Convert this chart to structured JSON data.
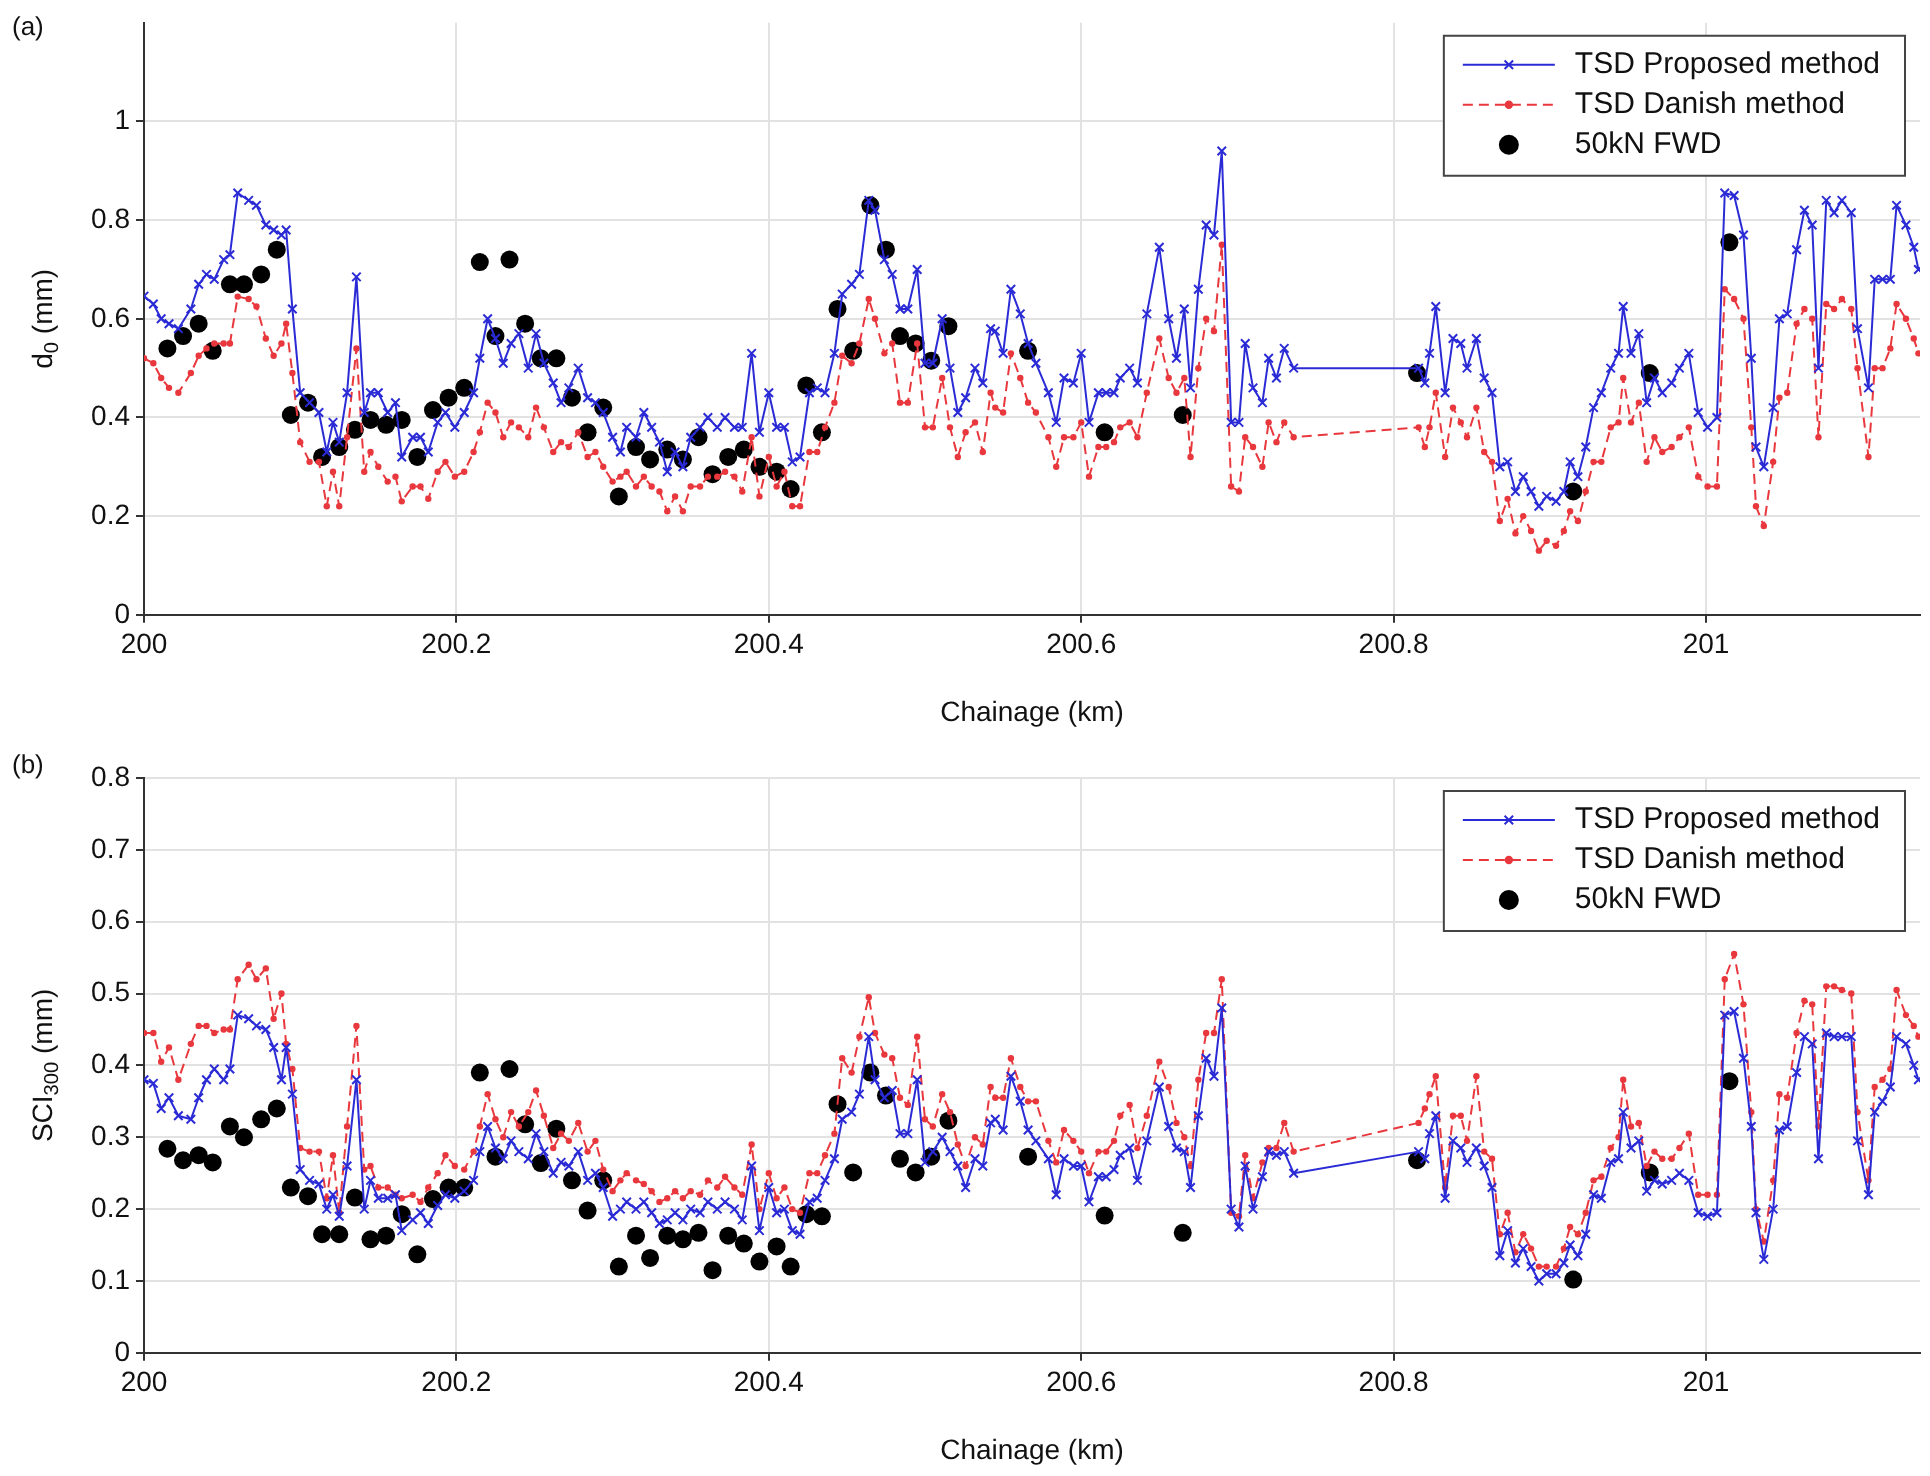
{
  "chart_data": [
    {
      "type": "line",
      "annotations": [
        "(a)"
      ],
      "xlabel": "Chainage (km)",
      "ylabel": "d$_{0}$ (mm)",
      "xlim": [
        200,
        201.137
      ],
      "ylim": [
        0,
        1.2
      ],
      "xticks": [
        200,
        200.2,
        200.4,
        200.6,
        200.8,
        201
      ],
      "yticks": [
        0,
        0.2,
        0.4,
        0.6,
        0.8,
        1
      ],
      "grid": true,
      "legend": "top right",
      "x": [
        200.0,
        200.006,
        200.011,
        200.016,
        200.022,
        200.03,
        200.035,
        200.04,
        200.045,
        200.051,
        200.055,
        200.06,
        200.067,
        200.072,
        200.078,
        200.083,
        200.088,
        200.091,
        200.095,
        200.1,
        200.106,
        200.112,
        200.117,
        200.121,
        200.125,
        200.13,
        200.136,
        200.141,
        200.145,
        200.15,
        200.156,
        200.161,
        200.165,
        200.172,
        200.177,
        200.182,
        200.188,
        200.193,
        200.199,
        200.205,
        200.211,
        200.215,
        200.22,
        200.225,
        200.23,
        200.235,
        200.24,
        200.246,
        200.251,
        200.256,
        200.262,
        200.267,
        200.272,
        200.278,
        200.284,
        200.289,
        200.294,
        200.3,
        200.305,
        200.309,
        200.315,
        200.32,
        200.325,
        200.33,
        200.335,
        200.34,
        200.345,
        200.35,
        200.356,
        200.361,
        200.367,
        200.372,
        200.378,
        200.383,
        200.389,
        200.394,
        200.4,
        200.405,
        200.41,
        200.415,
        200.42,
        200.426,
        200.431,
        200.436,
        200.442,
        200.447,
        200.453,
        200.458,
        200.464,
        200.468,
        200.474,
        200.479,
        200.484,
        200.489,
        200.495,
        200.5,
        200.505,
        200.511,
        200.516,
        200.521,
        200.526,
        200.532,
        200.537,
        200.542,
        200.545,
        200.55,
        200.555,
        200.561,
        200.566,
        200.571,
        200.579,
        200.584,
        200.589,
        200.595,
        200.6,
        200.605,
        200.611,
        200.616,
        200.621,
        200.625,
        200.631,
        200.636,
        200.642,
        200.65,
        200.656,
        200.661,
        200.666,
        200.67,
        200.675,
        200.68,
        200.685,
        200.69,
        200.696,
        200.701,
        200.705,
        200.71,
        200.716,
        200.72,
        200.725,
        200.73,
        200.736,
        200.816,
        200.82,
        200.823,
        200.827,
        200.833,
        200.838,
        200.843,
        200.847,
        200.853,
        200.858,
        200.863,
        200.868,
        200.873,
        200.878,
        200.883,
        200.888,
        200.893,
        200.898,
        200.904,
        200.909,
        200.913,
        200.918,
        200.923,
        200.928,
        200.933,
        200.939,
        200.944,
        200.947,
        200.952,
        200.957,
        200.962,
        200.967,
        200.972,
        200.978,
        200.983,
        200.989,
        200.995,
        201.001,
        201.007,
        201.012,
        201.018,
        201.024,
        201.029,
        201.032,
        201.037,
        201.043,
        201.047,
        201.052,
        201.058,
        201.063,
        201.068,
        201.072,
        201.077,
        201.082,
        201.087,
        201.093,
        201.097,
        201.104,
        201.108,
        201.113,
        201.118,
        201.122,
        201.128,
        201.133,
        201.136
      ],
      "series": [
        {
          "name": "TSD Proposed method",
          "color": "#2b2bd6",
          "marker": "cross",
          "line_style": "solid",
          "values": [
            0.646,
            0.63,
            0.6,
            0.59,
            0.58,
            0.62,
            0.67,
            0.69,
            0.68,
            0.72,
            0.73,
            0.855,
            0.84,
            0.83,
            0.79,
            0.78,
            0.77,
            0.78,
            0.62,
            0.45,
            0.43,
            0.41,
            0.33,
            0.39,
            0.35,
            0.45,
            0.685,
            0.41,
            0.45,
            0.45,
            0.41,
            0.43,
            0.32,
            0.36,
            0.36,
            0.33,
            0.39,
            0.41,
            0.38,
            0.41,
            0.45,
            0.52,
            0.6,
            0.56,
            0.51,
            0.55,
            0.57,
            0.5,
            0.57,
            0.51,
            0.47,
            0.43,
            0.46,
            0.5,
            0.44,
            0.43,
            0.41,
            0.36,
            0.33,
            0.38,
            0.36,
            0.41,
            0.38,
            0.35,
            0.29,
            0.33,
            0.3,
            0.36,
            0.38,
            0.4,
            0.38,
            0.4,
            0.38,
            0.38,
            0.53,
            0.37,
            0.45,
            0.38,
            0.38,
            0.31,
            0.32,
            0.45,
            0.46,
            0.45,
            0.53,
            0.65,
            0.67,
            0.69,
            0.84,
            0.82,
            0.72,
            0.69,
            0.62,
            0.62,
            0.7,
            0.51,
            0.51,
            0.6,
            0.5,
            0.41,
            0.44,
            0.5,
            0.47,
            0.58,
            0.575,
            0.53,
            0.66,
            0.61,
            0.55,
            0.51,
            0.45,
            0.39,
            0.48,
            0.47,
            0.53,
            0.39,
            0.45,
            0.45,
            0.45,
            0.48,
            0.5,
            0.47,
            0.61,
            0.745,
            0.6,
            0.52,
            0.62,
            0.46,
            0.66,
            0.79,
            0.77,
            0.94,
            0.39,
            0.39,
            0.55,
            0.46,
            0.43,
            0.52,
            0.48,
            0.54,
            0.5,
            0.5,
            0.47,
            0.53,
            0.625,
            0.45,
            0.56,
            0.55,
            0.5,
            0.56,
            0.48,
            0.45,
            0.3,
            0.31,
            0.25,
            0.28,
            0.25,
            0.22,
            0.24,
            0.23,
            0.25,
            0.31,
            0.28,
            0.34,
            0.42,
            0.45,
            0.5,
            0.53,
            0.625,
            0.53,
            0.57,
            0.43,
            0.48,
            0.45,
            0.47,
            0.5,
            0.53,
            0.41,
            0.38,
            0.4,
            0.855,
            0.85,
            0.77,
            0.52,
            0.34,
            0.3,
            0.42,
            0.6,
            0.61,
            0.74,
            0.82,
            0.79,
            0.5,
            0.84,
            0.815,
            0.84,
            0.815,
            0.58,
            0.46,
            0.68,
            0.68,
            0.68,
            0.83,
            0.79,
            0.745,
            0.7
          ]
        },
        {
          "name": "TSD Danish method",
          "color": "#e8383d",
          "marker": "circle",
          "line_style": "dashed",
          "values": [
            0.52,
            0.51,
            0.48,
            0.46,
            0.45,
            0.49,
            0.525,
            0.54,
            0.55,
            0.55,
            0.55,
            0.645,
            0.64,
            0.625,
            0.56,
            0.525,
            0.55,
            0.59,
            0.49,
            0.35,
            0.31,
            0.31,
            0.22,
            0.29,
            0.22,
            0.36,
            0.54,
            0.29,
            0.33,
            0.3,
            0.27,
            0.28,
            0.23,
            0.26,
            0.26,
            0.235,
            0.29,
            0.31,
            0.28,
            0.29,
            0.33,
            0.37,
            0.43,
            0.41,
            0.36,
            0.39,
            0.38,
            0.36,
            0.42,
            0.38,
            0.33,
            0.35,
            0.34,
            0.37,
            0.32,
            0.33,
            0.3,
            0.27,
            0.28,
            0.29,
            0.26,
            0.28,
            0.26,
            0.25,
            0.21,
            0.24,
            0.21,
            0.26,
            0.26,
            0.28,
            0.28,
            0.29,
            0.28,
            0.25,
            0.36,
            0.24,
            0.32,
            0.26,
            0.29,
            0.22,
            0.22,
            0.33,
            0.33,
            0.38,
            0.43,
            0.525,
            0.51,
            0.55,
            0.64,
            0.6,
            0.53,
            0.55,
            0.43,
            0.43,
            0.55,
            0.38,
            0.38,
            0.48,
            0.38,
            0.32,
            0.37,
            0.39,
            0.33,
            0.45,
            0.42,
            0.41,
            0.53,
            0.48,
            0.43,
            0.41,
            0.36,
            0.3,
            0.36,
            0.36,
            0.39,
            0.28,
            0.34,
            0.34,
            0.35,
            0.38,
            0.39,
            0.36,
            0.45,
            0.56,
            0.48,
            0.45,
            0.48,
            0.32,
            0.5,
            0.6,
            0.575,
            0.75,
            0.26,
            0.25,
            0.36,
            0.34,
            0.3,
            0.39,
            0.35,
            0.39,
            0.36,
            0.38,
            0.34,
            0.38,
            0.45,
            0.32,
            0.42,
            0.39,
            0.36,
            0.42,
            0.33,
            0.31,
            0.19,
            0.235,
            0.165,
            0.2,
            0.17,
            0.13,
            0.15,
            0.14,
            0.17,
            0.21,
            0.19,
            0.25,
            0.31,
            0.31,
            0.38,
            0.39,
            0.48,
            0.39,
            0.43,
            0.31,
            0.36,
            0.33,
            0.34,
            0.36,
            0.38,
            0.28,
            0.26,
            0.26,
            0.66,
            0.64,
            0.6,
            0.38,
            0.22,
            0.18,
            0.31,
            0.44,
            0.45,
            0.59,
            0.62,
            0.6,
            0.36,
            0.63,
            0.62,
            0.64,
            0.62,
            0.5,
            0.32,
            0.5,
            0.5,
            0.54,
            0.63,
            0.6,
            0.56,
            0.53
          ]
        },
        {
          "name": "50kN FWD",
          "type": "scatter",
          "color": "#000000",
          "marker": "circle",
          "x": [
            200.015,
            200.025,
            200.035,
            200.044,
            200.055,
            200.064,
            200.075,
            200.085,
            200.094,
            200.105,
            200.114,
            200.125,
            200.135,
            200.145,
            200.155,
            200.165,
            200.175,
            200.185,
            200.195,
            200.205,
            200.215,
            200.225,
            200.234,
            200.244,
            200.254,
            200.264,
            200.274,
            200.284,
            200.294,
            200.304,
            200.315,
            200.324,
            200.335,
            200.345,
            200.355,
            200.364,
            200.374,
            200.384,
            200.394,
            200.405,
            200.414,
            200.424,
            200.434,
            200.444,
            200.454,
            200.465,
            200.475,
            200.484,
            200.494,
            200.504,
            200.515,
            200.566,
            200.615,
            200.665,
            200.815,
            200.915,
            200.964,
            201.015
          ],
          "values": [
            0.54,
            0.565,
            0.59,
            0.535,
            0.67,
            0.67,
            0.69,
            0.74,
            0.405,
            0.43,
            0.32,
            0.34,
            0.375,
            0.395,
            0.385,
            0.395,
            0.32,
            0.415,
            0.44,
            0.46,
            0.715,
            0.565,
            0.72,
            0.59,
            0.52,
            0.52,
            0.44,
            0.37,
            0.42,
            0.24,
            0.34,
            0.315,
            0.335,
            0.315,
            0.36,
            0.285,
            0.32,
            0.335,
            0.3,
            0.29,
            0.255,
            0.465,
            0.37,
            0.62,
            0.535,
            0.83,
            0.74,
            0.565,
            0.55,
            0.515,
            0.585,
            0.535,
            0.37,
            0.405,
            0.49,
            0.25,
            0.49,
            0.755
          ]
        }
      ]
    },
    {
      "type": "line",
      "annotations": [
        "(b)"
      ],
      "xlabel": "Chainage (km)",
      "ylabel": "SCI$_{300}$ (mm)",
      "xlim": [
        200,
        201.137
      ],
      "ylim": [
        0,
        0.8
      ],
      "xticks": [
        200,
        200.2,
        200.4,
        200.6,
        200.8,
        201
      ],
      "yticks": [
        0,
        0.1,
        0.2,
        0.3,
        0.4,
        0.5,
        0.6,
        0.7,
        0.8
      ],
      "grid": true,
      "legend": "top right",
      "x": [
        200.0,
        200.006,
        200.011,
        200.016,
        200.022,
        200.03,
        200.035,
        200.04,
        200.045,
        200.051,
        200.055,
        200.06,
        200.067,
        200.072,
        200.078,
        200.083,
        200.088,
        200.091,
        200.095,
        200.1,
        200.106,
        200.112,
        200.117,
        200.121,
        200.125,
        200.13,
        200.136,
        200.141,
        200.145,
        200.15,
        200.156,
        200.161,
        200.165,
        200.172,
        200.177,
        200.182,
        200.188,
        200.193,
        200.199,
        200.205,
        200.211,
        200.215,
        200.22,
        200.225,
        200.23,
        200.235,
        200.24,
        200.246,
        200.251,
        200.256,
        200.262,
        200.267,
        200.272,
        200.278,
        200.284,
        200.289,
        200.294,
        200.3,
        200.305,
        200.309,
        200.315,
        200.32,
        200.325,
        200.33,
        200.335,
        200.34,
        200.345,
        200.35,
        200.356,
        200.361,
        200.367,
        200.372,
        200.378,
        200.383,
        200.389,
        200.394,
        200.4,
        200.405,
        200.41,
        200.415,
        200.42,
        200.426,
        200.431,
        200.436,
        200.442,
        200.447,
        200.453,
        200.458,
        200.464,
        200.468,
        200.474,
        200.479,
        200.484,
        200.489,
        200.495,
        200.5,
        200.505,
        200.511,
        200.516,
        200.521,
        200.526,
        200.532,
        200.537,
        200.542,
        200.545,
        200.55,
        200.555,
        200.561,
        200.566,
        200.571,
        200.579,
        200.584,
        200.589,
        200.595,
        200.6,
        200.605,
        200.611,
        200.616,
        200.621,
        200.625,
        200.631,
        200.636,
        200.642,
        200.65,
        200.656,
        200.661,
        200.666,
        200.67,
        200.675,
        200.68,
        200.685,
        200.69,
        200.696,
        200.701,
        200.705,
        200.71,
        200.716,
        200.72,
        200.725,
        200.73,
        200.736,
        200.816,
        200.82,
        200.823,
        200.827,
        200.833,
        200.838,
        200.843,
        200.847,
        200.853,
        200.858,
        200.863,
        200.868,
        200.873,
        200.878,
        200.883,
        200.888,
        200.893,
        200.898,
        200.904,
        200.909,
        200.913,
        200.918,
        200.923,
        200.928,
        200.933,
        200.939,
        200.944,
        200.947,
        200.952,
        200.957,
        200.962,
        200.967,
        200.972,
        200.978,
        200.983,
        200.989,
        200.995,
        201.001,
        201.007,
        201.012,
        201.018,
        201.024,
        201.029,
        201.032,
        201.037,
        201.043,
        201.047,
        201.052,
        201.058,
        201.063,
        201.068,
        201.072,
        201.077,
        201.082,
        201.087,
        201.093,
        201.097,
        201.104,
        201.108,
        201.113,
        201.118,
        201.122,
        201.128,
        201.133,
        201.136
      ],
      "series": [
        {
          "name": "TSD Proposed method",
          "color": "#2b2bd6",
          "marker": "cross",
          "line_style": "solid",
          "values": [
            0.38,
            0.375,
            0.34,
            0.355,
            0.33,
            0.325,
            0.355,
            0.38,
            0.395,
            0.38,
            0.395,
            0.47,
            0.465,
            0.455,
            0.45,
            0.425,
            0.38,
            0.425,
            0.36,
            0.255,
            0.24,
            0.235,
            0.2,
            0.22,
            0.19,
            0.26,
            0.38,
            0.2,
            0.24,
            0.215,
            0.215,
            0.22,
            0.17,
            0.185,
            0.195,
            0.18,
            0.205,
            0.22,
            0.215,
            0.225,
            0.24,
            0.28,
            0.315,
            0.285,
            0.27,
            0.295,
            0.28,
            0.27,
            0.305,
            0.28,
            0.25,
            0.265,
            0.26,
            0.28,
            0.24,
            0.25,
            0.23,
            0.19,
            0.2,
            0.21,
            0.2,
            0.21,
            0.195,
            0.18,
            0.185,
            0.195,
            0.185,
            0.2,
            0.195,
            0.21,
            0.2,
            0.21,
            0.2,
            0.185,
            0.26,
            0.17,
            0.23,
            0.195,
            0.2,
            0.17,
            0.165,
            0.21,
            0.215,
            0.24,
            0.27,
            0.325,
            0.335,
            0.36,
            0.44,
            0.38,
            0.355,
            0.365,
            0.305,
            0.305,
            0.38,
            0.265,
            0.28,
            0.3,
            0.28,
            0.26,
            0.23,
            0.27,
            0.26,
            0.32,
            0.325,
            0.31,
            0.385,
            0.35,
            0.31,
            0.295,
            0.27,
            0.22,
            0.27,
            0.26,
            0.26,
            0.21,
            0.245,
            0.245,
            0.255,
            0.275,
            0.285,
            0.24,
            0.295,
            0.37,
            0.315,
            0.285,
            0.28,
            0.23,
            0.33,
            0.41,
            0.385,
            0.48,
            0.2,
            0.175,
            0.26,
            0.2,
            0.245,
            0.28,
            0.275,
            0.28,
            0.25,
            0.28,
            0.27,
            0.305,
            0.33,
            0.215,
            0.295,
            0.285,
            0.265,
            0.285,
            0.26,
            0.23,
            0.135,
            0.17,
            0.125,
            0.145,
            0.12,
            0.1,
            0.11,
            0.11,
            0.125,
            0.15,
            0.135,
            0.165,
            0.22,
            0.215,
            0.265,
            0.27,
            0.335,
            0.285,
            0.295,
            0.225,
            0.24,
            0.235,
            0.24,
            0.25,
            0.24,
            0.195,
            0.19,
            0.195,
            0.47,
            0.475,
            0.41,
            0.315,
            0.195,
            0.13,
            0.2,
            0.31,
            0.315,
            0.39,
            0.44,
            0.43,
            0.27,
            0.445,
            0.44,
            0.44,
            0.44,
            0.295,
            0.22,
            0.335,
            0.35,
            0.37,
            0.44,
            0.43,
            0.4,
            0.38
          ]
        },
        {
          "name": "TSD Danish method",
          "color": "#e8383d",
          "marker": "circle",
          "line_style": "dashed",
          "values": [
            0.445,
            0.445,
            0.405,
            0.425,
            0.38,
            0.43,
            0.455,
            0.455,
            0.445,
            0.45,
            0.45,
            0.52,
            0.54,
            0.52,
            0.535,
            0.465,
            0.5,
            0.43,
            0.395,
            0.285,
            0.28,
            0.28,
            0.215,
            0.275,
            0.195,
            0.315,
            0.455,
            0.255,
            0.26,
            0.23,
            0.23,
            0.22,
            0.215,
            0.22,
            0.21,
            0.23,
            0.25,
            0.275,
            0.26,
            0.255,
            0.28,
            0.315,
            0.36,
            0.325,
            0.3,
            0.335,
            0.315,
            0.335,
            0.365,
            0.33,
            0.285,
            0.305,
            0.295,
            0.32,
            0.28,
            0.295,
            0.255,
            0.225,
            0.24,
            0.25,
            0.24,
            0.235,
            0.225,
            0.21,
            0.215,
            0.225,
            0.215,
            0.225,
            0.22,
            0.24,
            0.23,
            0.245,
            0.23,
            0.22,
            0.29,
            0.2,
            0.25,
            0.215,
            0.23,
            0.2,
            0.195,
            0.25,
            0.25,
            0.275,
            0.305,
            0.41,
            0.39,
            0.44,
            0.495,
            0.445,
            0.415,
            0.41,
            0.355,
            0.345,
            0.44,
            0.325,
            0.315,
            0.36,
            0.335,
            0.29,
            0.26,
            0.3,
            0.29,
            0.37,
            0.355,
            0.355,
            0.41,
            0.37,
            0.35,
            0.35,
            0.295,
            0.265,
            0.31,
            0.295,
            0.28,
            0.25,
            0.28,
            0.28,
            0.295,
            0.33,
            0.345,
            0.285,
            0.33,
            0.405,
            0.37,
            0.32,
            0.3,
            0.26,
            0.38,
            0.445,
            0.445,
            0.52,
            0.195,
            0.19,
            0.275,
            0.215,
            0.265,
            0.285,
            0.285,
            0.32,
            0.28,
            0.32,
            0.34,
            0.36,
            0.385,
            0.23,
            0.33,
            0.33,
            0.295,
            0.385,
            0.28,
            0.27,
            0.165,
            0.195,
            0.14,
            0.165,
            0.145,
            0.12,
            0.12,
            0.12,
            0.145,
            0.175,
            0.165,
            0.195,
            0.24,
            0.245,
            0.285,
            0.3,
            0.38,
            0.315,
            0.32,
            0.26,
            0.28,
            0.27,
            0.27,
            0.285,
            0.305,
            0.22,
            0.22,
            0.22,
            0.52,
            0.555,
            0.485,
            0.335,
            0.2,
            0.155,
            0.24,
            0.36,
            0.355,
            0.445,
            0.49,
            0.485,
            0.315,
            0.51,
            0.51,
            0.505,
            0.5,
            0.335,
            0.24,
            0.37,
            0.38,
            0.395,
            0.505,
            0.47,
            0.455,
            0.44
          ]
        },
        {
          "name": "50kN FWD",
          "type": "scatter",
          "color": "#000000",
          "marker": "circle",
          "x": [
            200.015,
            200.025,
            200.035,
            200.044,
            200.055,
            200.064,
            200.075,
            200.085,
            200.094,
            200.105,
            200.114,
            200.125,
            200.135,
            200.145,
            200.155,
            200.165,
            200.175,
            200.185,
            200.195,
            200.205,
            200.215,
            200.225,
            200.234,
            200.244,
            200.254,
            200.264,
            200.274,
            200.284,
            200.294,
            200.304,
            200.315,
            200.324,
            200.335,
            200.345,
            200.355,
            200.364,
            200.374,
            200.384,
            200.394,
            200.405,
            200.414,
            200.424,
            200.434,
            200.444,
            200.454,
            200.465,
            200.475,
            200.484,
            200.494,
            200.504,
            200.515,
            200.566,
            200.615,
            200.665,
            200.815,
            200.915,
            200.964,
            201.015
          ],
          "values": [
            0.284,
            0.268,
            0.275,
            0.265,
            0.315,
            0.3,
            0.325,
            0.34,
            0.23,
            0.218,
            0.165,
            0.165,
            0.216,
            0.158,
            0.163,
            0.193,
            0.137,
            0.214,
            0.23,
            0.23,
            0.39,
            0.273,
            0.395,
            0.318,
            0.264,
            0.312,
            0.24,
            0.198,
            0.24,
            0.12,
            0.163,
            0.132,
            0.163,
            0.158,
            0.167,
            0.115,
            0.163,
            0.152,
            0.127,
            0.148,
            0.12,
            0.193,
            0.19,
            0.346,
            0.251,
            0.39,
            0.358,
            0.27,
            0.251,
            0.273,
            0.323,
            0.273,
            0.191,
            0.167,
            0.268,
            0.102,
            0.251,
            0.378
          ]
        }
      ]
    }
  ]
}
